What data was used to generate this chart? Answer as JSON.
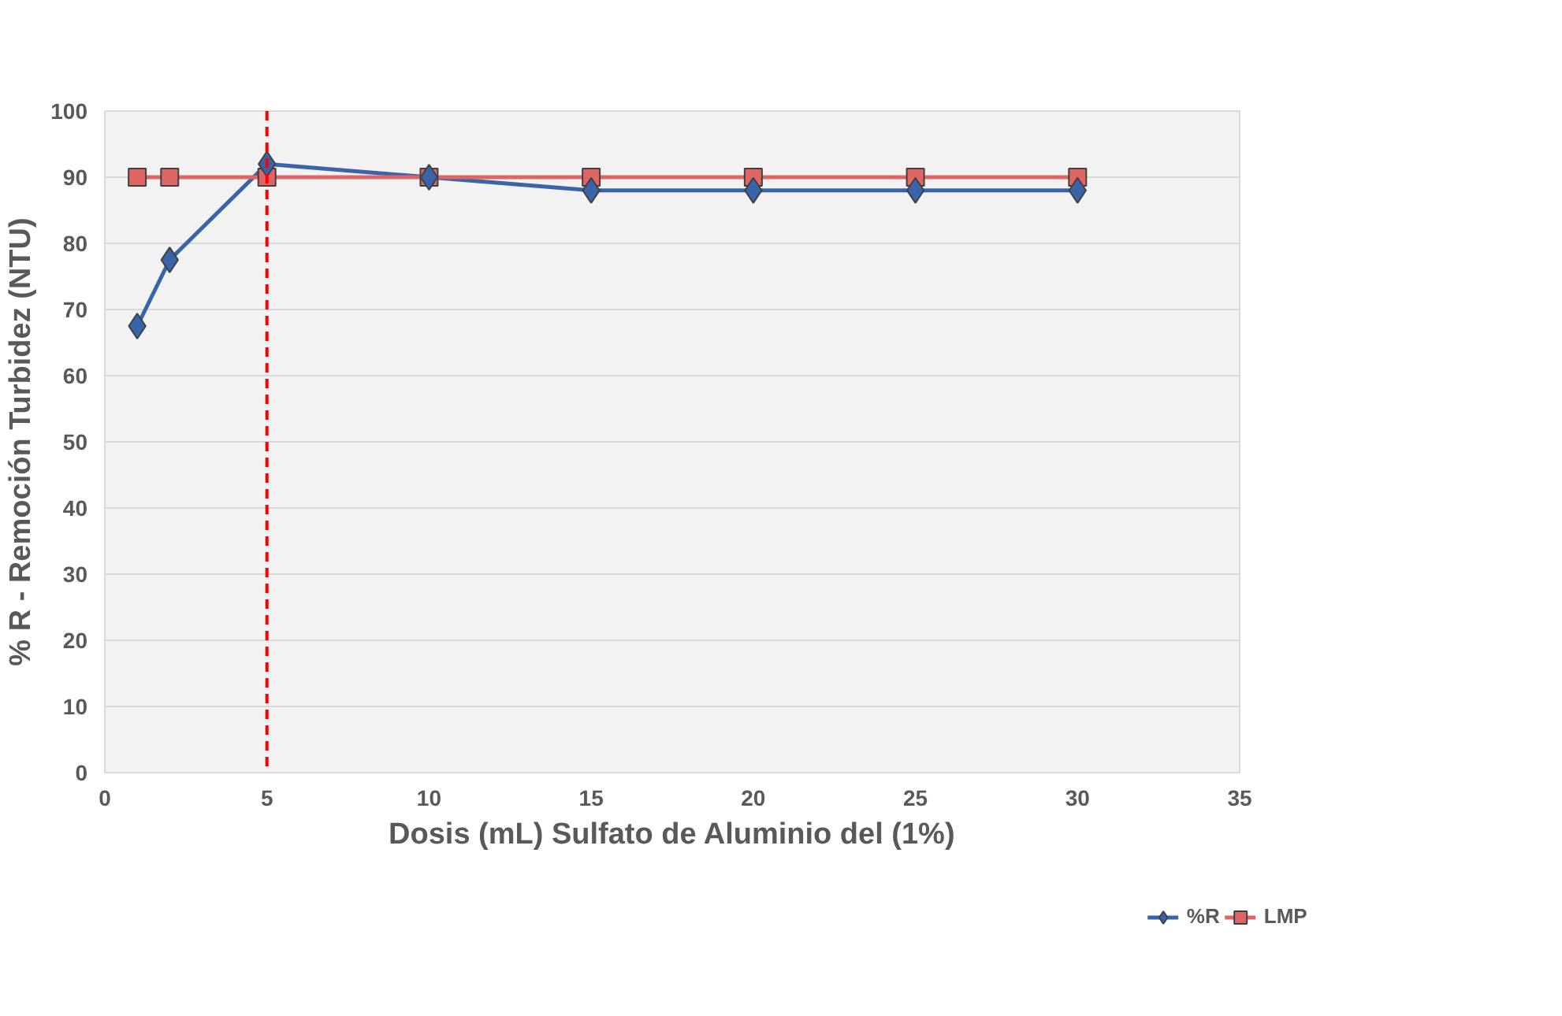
{
  "chart_data": {
    "type": "line",
    "xlabel": "Dosis (mL) Sulfato de Aluminio del (1%)",
    "ylabel": "% R - Remoción Turbidez (NTU)",
    "x": [
      1,
      2,
      5,
      10,
      15,
      20,
      25,
      30
    ],
    "series": [
      {
        "name": "%R",
        "color": "#3a64a8",
        "marker": "diamond",
        "values": [
          67.5,
          77.5,
          92,
          90,
          88,
          88,
          88,
          88
        ]
      },
      {
        "name": "LMP",
        "color": "#e06666",
        "marker": "square",
        "values": [
          90,
          90,
          90,
          90,
          90,
          90,
          90,
          90
        ]
      }
    ],
    "xlim": [
      0,
      35
    ],
    "xticks": [
      0,
      5,
      10,
      15,
      20,
      25,
      30,
      35
    ],
    "ylim": [
      0,
      100
    ],
    "yticks": [
      0,
      10,
      20,
      30,
      40,
      50,
      60,
      70,
      80,
      90,
      100
    ],
    "grid": "y",
    "legend": "bottom",
    "line_style": "solid",
    "ref_lines": [
      {
        "axis": "x",
        "value": 5,
        "label": null,
        "color": "#ff0000",
        "line_style": "dashed"
      }
    ]
  }
}
